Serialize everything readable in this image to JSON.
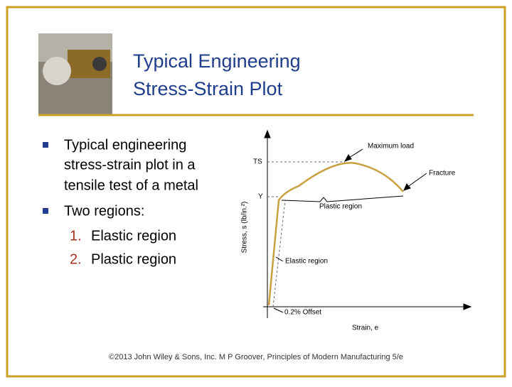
{
  "header": {
    "title_lines": [
      "Typical Engineering",
      "Stress-Strain Plot"
    ]
  },
  "bullets": [
    {
      "lines": [
        "Typical engineering",
        "stress‑strain plot in a",
        "tensile test of a metal"
      ]
    },
    {
      "lines": [
        "Two regions:"
      ],
      "items": [
        {
          "number": "1.",
          "text": "Elastic region"
        },
        {
          "number": "2.",
          "text": "Plastic region"
        }
      ]
    }
  ],
  "figure": {
    "y_axis_label": "Stress, s (lb/in.²)",
    "x_axis_label": "Strain, e",
    "ts_label": "TS",
    "y_label": "Y",
    "annotations": [
      "Maximum load",
      "Fracture",
      "Plastic region",
      "Elastic region",
      "0.2% Offset"
    ]
  },
  "footer": "©2013 John Wiley & Sons, Inc.  M P Groover, Principles of Modern Manufacturing 5/e"
}
